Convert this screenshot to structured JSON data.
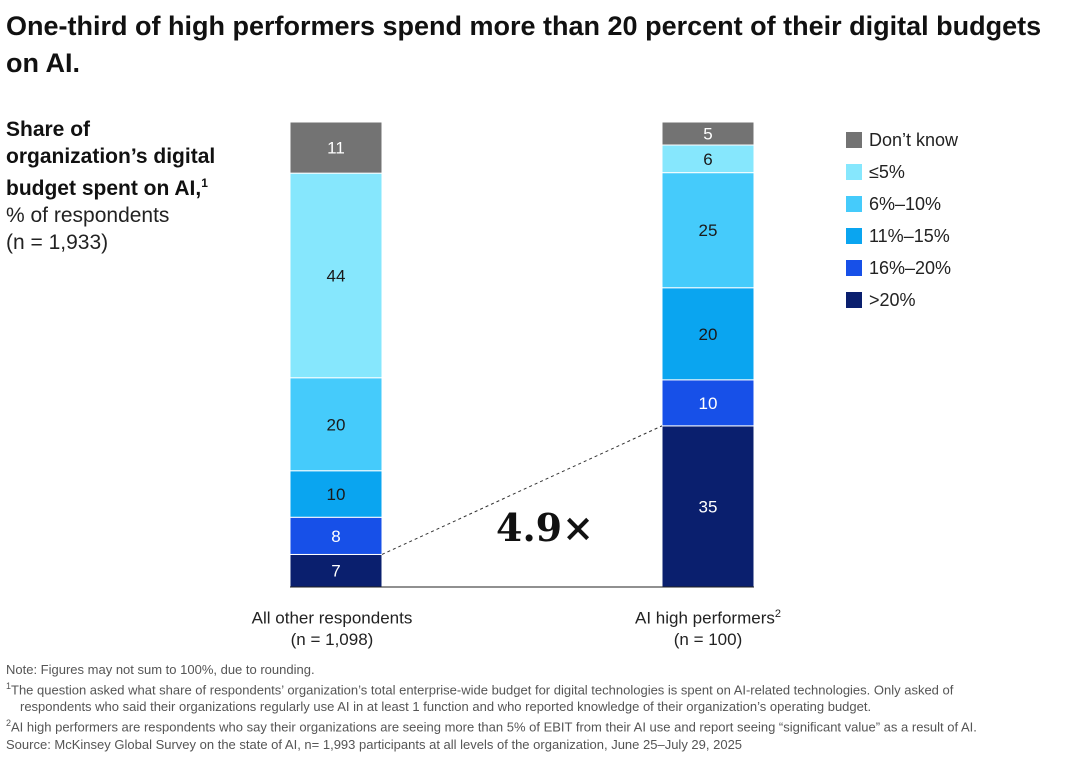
{
  "title": "One-third of high performers spend more than 20 percent of their digital budgets on AI.",
  "y_axis": {
    "title": "Share of organization’s digital budget spent on AI,",
    "title_footnote": "1",
    "unit": "% of respondents",
    "n": "(n = 1,933)"
  },
  "annotation": "4.9×",
  "chart_data": {
    "type": "bar",
    "stacked": true,
    "categories": [
      "All other respondents",
      "AI high performers"
    ],
    "category_footnotes": [
      "",
      "2"
    ],
    "category_n": [
      "(n = 1,098)",
      "(n = 100)"
    ],
    "ylim": [
      0,
      100
    ],
    "legend_position": "right",
    "series": [
      {
        "name": ">20%",
        "color": "#0a1f6e",
        "values": [
          7,
          35
        ]
      },
      {
        "name": "16%–20%",
        "color": "#1750e8",
        "values": [
          8,
          10
        ]
      },
      {
        "name": "11%–15%",
        "color": "#0aa5f0",
        "values": [
          10,
          20
        ]
      },
      {
        "name": "6%–10%",
        "color": "#45cbfb",
        "values": [
          20,
          25
        ]
      },
      {
        "name": "≤5%",
        "color": "#86e7fd",
        "values": [
          44,
          6
        ]
      },
      {
        "name": "Don’t know",
        "color": "#737373",
        "values": [
          11,
          5
        ]
      }
    ]
  },
  "footnotes": {
    "note": "Note: Figures may not sum to 100%, due to rounding.",
    "fn1_mark": "1",
    "fn1_line1": "The question asked what share of respondents’ organization’s total enterprise-wide budget for digital technologies is spent on AI-related technologies. Only asked of",
    "fn1_line2": "respondents who said their organizations regularly use AI in at least 1 function and who reported knowledge of their organization’s operating budget.",
    "fn2_mark": "2",
    "fn2": "AI high performers are respondents who say their organizations are seeing more than 5% of EBIT from their AI use and report seeing “significant value” as a result of AI.",
    "source": "Source: McKinsey Global Survey on the state of AI, n= 1,993 participants at all levels of the organization, June 25–July 29, 2025"
  }
}
